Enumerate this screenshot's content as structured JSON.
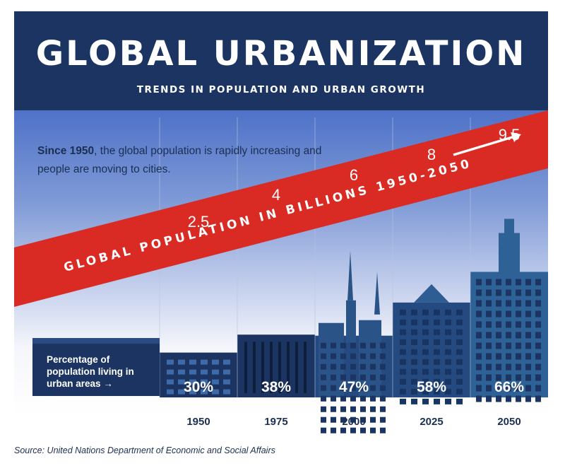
{
  "header": {
    "title": "GLOBAL URBANIZATION",
    "subtitle": "TRENDS IN POPULATION AND URBAN GROWTH"
  },
  "intro": {
    "bold": "Since 1950",
    "text": ", the global population is rapidly increasing and people are moving to cities."
  },
  "banner_label": "GLOBAL POPULATION IN BILLIONS 1950-2050",
  "urban_label": "Percentage of population living in urban areas →",
  "source": "Source: United Nations Department of Economic and Social Affairs",
  "colors": {
    "header": "#1b3461",
    "banner": "#d92b24",
    "building_dark": "#1b3461",
    "building_mid": "#244a80",
    "building_light": "#2e6195"
  },
  "chart_data": {
    "type": "bar",
    "title": "GLOBAL URBANIZATION",
    "subtitle": "TRENDS IN POPULATION AND URBAN GROWTH",
    "categories": [
      "1950",
      "1975",
      "2000",
      "2025",
      "2050"
    ],
    "series": [
      {
        "name": "GLOBAL POPULATION IN BILLIONS 1950-2050",
        "values": [
          2.5,
          4,
          6,
          8,
          9.5
        ],
        "labels": [
          "2.5",
          "4",
          "6",
          "8",
          "9.5"
        ]
      },
      {
        "name": "Percentage of population living in urban areas",
        "values": [
          30,
          38,
          47,
          58,
          66
        ],
        "labels": [
          "30%",
          "38%",
          "47%",
          "58%",
          "66%"
        ]
      }
    ]
  }
}
